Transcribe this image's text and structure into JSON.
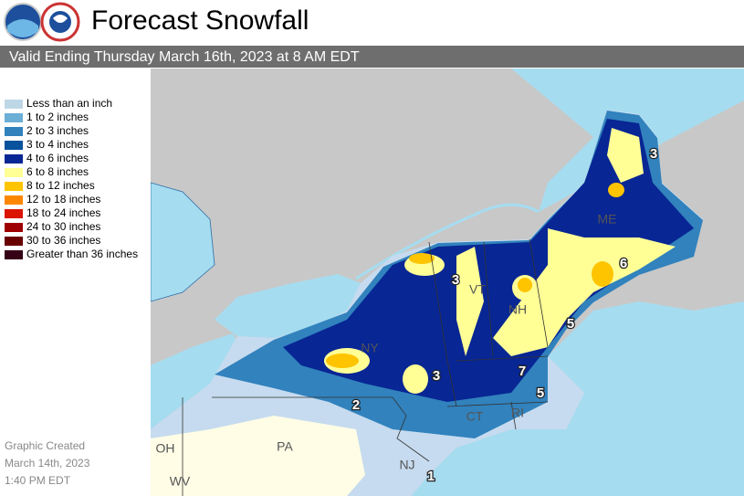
{
  "header": {
    "title": "Forecast Snowfall",
    "subtitle": "Valid Ending Thursday March 16th, 2023 at 8 AM EDT"
  },
  "legend": {
    "items": [
      {
        "label": "Less than an inch",
        "color": "#bdd7e7"
      },
      {
        "label": "1 to 2 inches",
        "color": "#6baed6"
      },
      {
        "label": "2 to 3 inches",
        "color": "#3182bd"
      },
      {
        "label": "3 to 4 inches",
        "color": "#08519c"
      },
      {
        "label": "4 to 6 inches",
        "color": "#082694"
      },
      {
        "label": "6 to 8 inches",
        "color": "#ffff96"
      },
      {
        "label": "8 to 12 inches",
        "color": "#ffc400"
      },
      {
        "label": "12 to 18 inches",
        "color": "#ff8700"
      },
      {
        "label": "18 to 24 inches",
        "color": "#db1400"
      },
      {
        "label": "24 to 30 inches",
        "color": "#9e0000"
      },
      {
        "label": "30 to 36 inches",
        "color": "#690000"
      },
      {
        "label": "Greater than 36 inches",
        "color": "#360016"
      }
    ]
  },
  "state_labels": [
    "ME",
    "NH",
    "VT",
    "NY",
    "CT",
    "RI",
    "NJ",
    "PA",
    "OH",
    "WV"
  ],
  "contour_labels": [
    3,
    6,
    5,
    3,
    3,
    7,
    5,
    2,
    1
  ],
  "footer": {
    "lines": [
      "Graphic Created",
      "March 14th, 2023",
      "1:40 PM EDT"
    ]
  }
}
